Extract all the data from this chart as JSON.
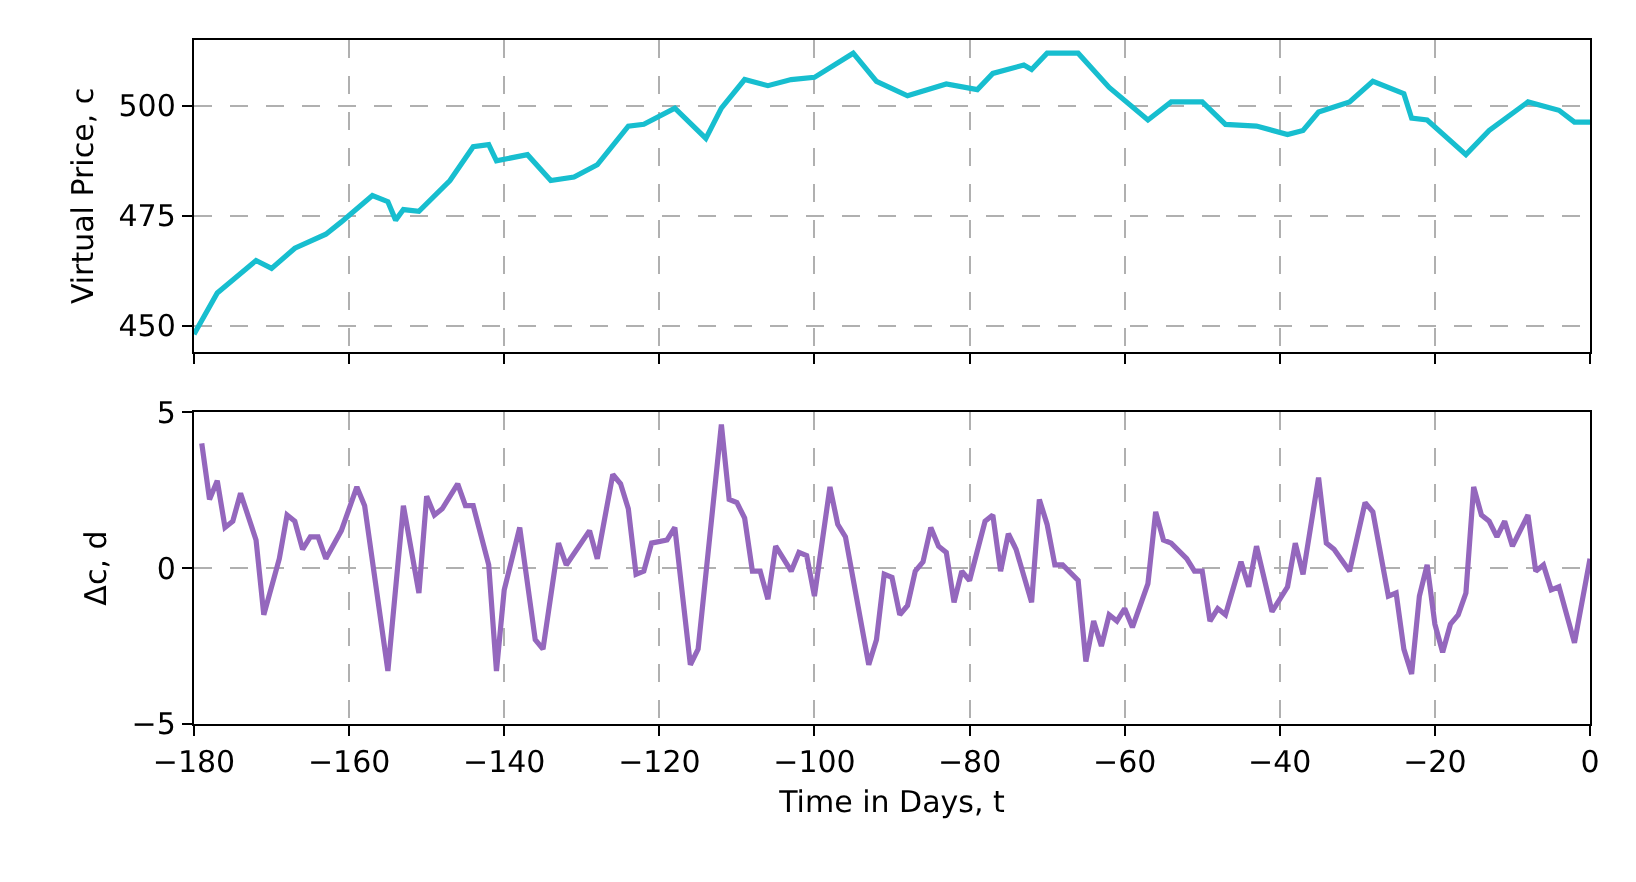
{
  "chart_data": [
    {
      "type": "line",
      "ylabel": "Virtual Price, c",
      "xlim": [
        -180,
        0
      ],
      "xticks": [
        -180,
        -160,
        -140,
        -120,
        -100,
        -80,
        -60,
        -40,
        -20,
        0
      ],
      "ylim": [
        444,
        515
      ],
      "yticks": [
        450,
        475,
        500
      ],
      "grid": true,
      "tick_labels": "y",
      "series": [
        {
          "color": "#17becf",
          "x": [
            -180,
            -177,
            -172,
            -170,
            -167,
            -163,
            -161,
            -157,
            -155,
            -154,
            -153,
            -151,
            -147,
            -144,
            -142,
            -141,
            -137,
            -134,
            -131,
            -128,
            -124,
            -122,
            -118,
            -114,
            -112,
            -109,
            -106,
            -103,
            -100,
            -95,
            -92,
            -88,
            -83,
            -79,
            -77,
            -73,
            -72,
            -70,
            -66,
            -62,
            -57,
            -54,
            -50,
            -47,
            -43,
            -39,
            -37,
            -35,
            -31,
            -28,
            -24,
            -23,
            -21,
            -16,
            -13,
            -8,
            -4,
            -2,
            0
          ],
          "values": [
            448,
            457.4,
            464.8,
            463,
            467.6,
            470.8,
            473.6,
            479.6,
            478.2,
            474,
            476.4,
            476,
            483,
            490.7,
            491.2,
            487.5,
            488.9,
            483,
            483.8,
            486.6,
            495.4,
            495.8,
            499.5,
            492.6,
            499.5,
            506,
            504.6,
            506,
            506.5,
            512,
            505.6,
            502.3,
            505,
            503.7,
            507.4,
            509.3,
            508.3,
            512,
            512,
            504.2,
            496.8,
            500.9,
            500.9,
            495.8,
            495.4,
            493.5,
            494.4,
            498.6,
            500.9,
            505.6,
            502.8,
            497.2,
            496.8,
            488.9,
            494.4,
            500.9,
            499,
            496.3,
            496.3
          ]
        }
      ]
    },
    {
      "type": "line",
      "ylabel": "Δc, d",
      "xlabel": "Time in Days, t",
      "xlim": [
        -180,
        0
      ],
      "xticks": [
        -180,
        -160,
        -140,
        -120,
        -100,
        -80,
        -60,
        -40,
        -20,
        0
      ],
      "ylim": [
        -5,
        5
      ],
      "yticks": [
        -5,
        0,
        5
      ],
      "grid": true,
      "series": [
        {
          "color": "#9467bd",
          "x": [
            -179,
            -178,
            -177,
            -176,
            -175,
            -174,
            -172,
            -171,
            -169,
            -168,
            -167,
            -166,
            -165,
            -164,
            -163,
            -161,
            -159,
            -158,
            -155,
            -153,
            -151,
            -150,
            -149,
            -148,
            -146,
            -145,
            -144,
            -142,
            -141,
            -140,
            -138,
            -136,
            -135,
            -133,
            -132,
            -129,
            -128,
            -126,
            -125,
            -124,
            -123,
            -122,
            -121,
            -119,
            -118,
            -116,
            -115,
            -112,
            -111,
            -110,
            -109,
            -108,
            -107,
            -106,
            -105,
            -103,
            -102,
            -101,
            -100,
            -98,
            -97,
            -96,
            -93,
            -92,
            -91,
            -90,
            -89,
            -88,
            -87,
            -86,
            -85,
            -84,
            -83,
            -82,
            -81,
            -80,
            -78,
            -77,
            -76,
            -75,
            -74,
            -72,
            -71,
            -70,
            -69,
            -68,
            -66,
            -65,
            -64,
            -63,
            -62,
            -61,
            -60,
            -59,
            -57,
            -56,
            -55,
            -54,
            -52,
            -51,
            -50,
            -49,
            -48,
            -47,
            -45,
            -44,
            -43,
            -41,
            -39,
            -38,
            -37,
            -35,
            -34,
            -33,
            -31,
            -29,
            -28,
            -26,
            -25,
            -24,
            -23,
            -22,
            -21,
            -20,
            -19,
            -18,
            -17,
            -16,
            -15,
            -14,
            -13,
            -12,
            -11,
            -10,
            -8,
            -7,
            -6,
            -5,
            -4,
            -2,
            0
          ],
          "values": [
            4.0,
            2.2,
            2.8,
            1.3,
            1.5,
            2.4,
            0.9,
            -1.5,
            0.3,
            1.7,
            1.5,
            0.6,
            1.0,
            1.0,
            0.3,
            1.2,
            2.6,
            2.0,
            -3.3,
            2.0,
            -0.8,
            2.3,
            1.7,
            1.9,
            2.7,
            2.0,
            2.0,
            0.1,
            -3.3,
            -0.7,
            1.3,
            -2.3,
            -2.6,
            0.8,
            0.1,
            1.2,
            0.3,
            3.0,
            2.7,
            1.9,
            -0.2,
            -0.1,
            0.8,
            0.9,
            1.3,
            -3.1,
            -2.6,
            4.6,
            2.2,
            2.1,
            1.6,
            -0.1,
            -0.1,
            -1.0,
            0.7,
            -0.1,
            0.5,
            0.4,
            -0.9,
            2.6,
            1.4,
            1.0,
            -3.1,
            -2.3,
            -0.2,
            -0.3,
            -1.5,
            -1.2,
            -0.1,
            0.2,
            1.3,
            0.7,
            0.5,
            -1.1,
            -0.1,
            -0.4,
            1.5,
            1.7,
            -0.1,
            1.1,
            0.6,
            -1.1,
            2.2,
            1.4,
            0.1,
            0.1,
            -0.4,
            -3.0,
            -1.7,
            -2.5,
            -1.5,
            -1.7,
            -1.3,
            -1.9,
            -0.5,
            1.8,
            0.9,
            0.8,
            0.3,
            -0.1,
            -0.1,
            -1.7,
            -1.3,
            -1.5,
            0.2,
            -0.6,
            0.7,
            -1.4,
            -0.6,
            0.8,
            -0.2,
            2.9,
            0.8,
            0.6,
            -0.1,
            2.1,
            1.8,
            -0.9,
            -0.8,
            -2.6,
            -3.4,
            -0.9,
            0.1,
            -1.8,
            -2.7,
            -1.8,
            -1.5,
            -0.8,
            2.6,
            1.7,
            1.5,
            1.0,
            1.5,
            0.7,
            1.7,
            -0.1,
            0.1,
            -0.7,
            -0.6,
            -2.4,
            0.3
          ]
        }
      ]
    }
  ]
}
